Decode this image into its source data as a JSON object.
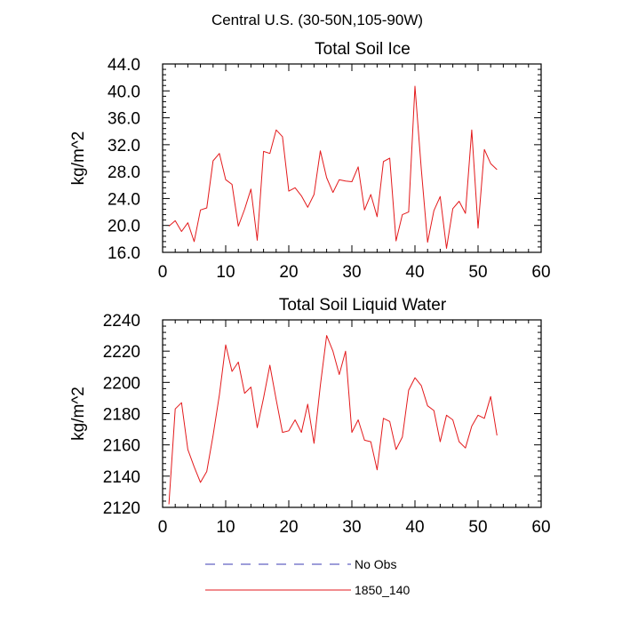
{
  "figure": {
    "title": "Central U.S. (30-50N,105-90W)"
  },
  "legend": {
    "entries": [
      {
        "label": "No Obs",
        "color": "#3b3bb3",
        "style": "dashed"
      },
      {
        "label": "1850_140",
        "color": "#e31a1c",
        "style": "solid"
      }
    ]
  },
  "chart_data": [
    {
      "type": "line",
      "title": "Total Soil Ice",
      "xlabel": "",
      "ylabel": "kg/m^2",
      "xlim": [
        0,
        60
      ],
      "ylim": [
        16,
        44
      ],
      "xticks": [
        0,
        10,
        20,
        30,
        40,
        50,
        60
      ],
      "yticks": [
        16,
        20,
        24,
        28,
        32,
        36,
        40,
        44
      ],
      "ytick_labels": [
        "16.0",
        "20.0",
        "24.0",
        "28.0",
        "32.0",
        "36.0",
        "40.0",
        "44.0"
      ],
      "grid": false,
      "series": [
        {
          "name": "1850_140",
          "color": "#e31a1c",
          "x": [
            1,
            2,
            3,
            4,
            5,
            6,
            7,
            8,
            9,
            10,
            11,
            12,
            13,
            14,
            15,
            16,
            17,
            18,
            19,
            20,
            21,
            22,
            23,
            24,
            25,
            26,
            27,
            28,
            29,
            30,
            31,
            32,
            33,
            34,
            35,
            36,
            37,
            38,
            39,
            40,
            41,
            42,
            43,
            44,
            45,
            46,
            47,
            48,
            49,
            50,
            51,
            52,
            53
          ],
          "y": [
            19.9,
            20.7,
            19.1,
            20.4,
            17.6,
            22.3,
            22.6,
            29.6,
            30.7,
            26.8,
            26.1,
            19.9,
            22.4,
            25.4,
            17.8,
            31.0,
            30.7,
            34.2,
            33.2,
            25.1,
            25.6,
            24.4,
            22.7,
            24.6,
            31.1,
            27.1,
            24.9,
            26.8,
            26.6,
            26.5,
            28.7,
            22.3,
            24.6,
            21.3,
            29.5,
            30.0,
            17.7,
            21.6,
            22.0,
            40.7,
            28.4,
            17.5,
            22.2,
            24.3,
            16.6,
            22.5,
            23.6,
            21.8,
            34.2,
            19.6,
            31.3,
            29.2,
            28.3
          ]
        }
      ]
    },
    {
      "type": "line",
      "title": "Total Soil Liquid Water",
      "xlabel": "",
      "ylabel": "kg/m^2",
      "xlim": [
        0,
        60
      ],
      "ylim": [
        2120,
        2240
      ],
      "xticks": [
        0,
        10,
        20,
        30,
        40,
        50,
        60
      ],
      "yticks": [
        2120,
        2140,
        2160,
        2180,
        2200,
        2220,
        2240
      ],
      "ytick_labels": [
        "2120",
        "2140",
        "2160",
        "2180",
        "2200",
        "2220",
        "2240"
      ],
      "grid": false,
      "series": [
        {
          "name": "1850_140",
          "color": "#e31a1c",
          "x": [
            1,
            2,
            3,
            4,
            5,
            6,
            7,
            8,
            9,
            10,
            11,
            12,
            13,
            14,
            15,
            16,
            17,
            18,
            19,
            20,
            21,
            22,
            23,
            24,
            25,
            26,
            27,
            28,
            29,
            30,
            31,
            32,
            33,
            34,
            35,
            36,
            37,
            38,
            39,
            40,
            41,
            42,
            43,
            44,
            45,
            46,
            47,
            48,
            49,
            50,
            51,
            52,
            53
          ],
          "y": [
            2122,
            2183,
            2187,
            2157,
            2146,
            2136,
            2143,
            2166,
            2192,
            2224,
            2207,
            2213,
            2193,
            2197,
            2171,
            2190,
            2211,
            2189,
            2168,
            2169,
            2176,
            2168,
            2186,
            2161,
            2198,
            2230,
            2220,
            2205,
            2220,
            2168,
            2176,
            2163,
            2162,
            2144,
            2177,
            2175,
            2157,
            2165,
            2195,
            2203,
            2198,
            2185,
            2182,
            2162,
            2179,
            2176,
            2162,
            2158,
            2172,
            2179,
            2177,
            2191,
            2166
          ]
        }
      ]
    }
  ]
}
